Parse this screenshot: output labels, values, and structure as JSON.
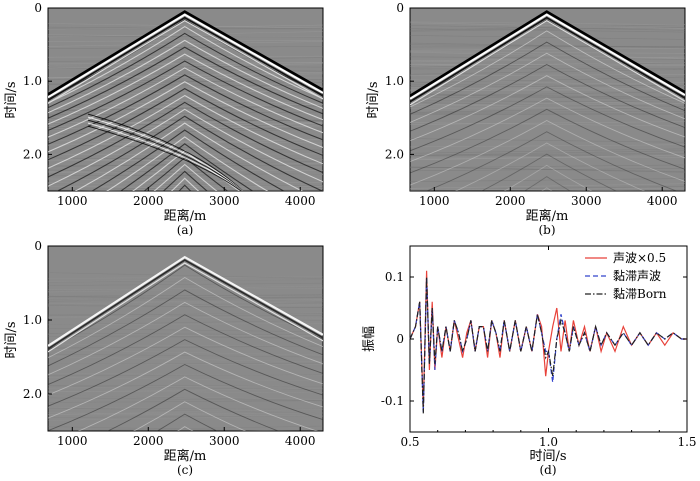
{
  "figure": {
    "panels": [
      {
        "id": "a",
        "caption": "(a)",
        "xlabel": "距离/m",
        "ylabel": "时间/s",
        "xticks": [
          "1000",
          "2000",
          "3000",
          "4000"
        ],
        "yticks": [
          "0",
          "1.0",
          "2.0"
        ]
      },
      {
        "id": "b",
        "caption": "(b)",
        "xlabel": "距离/m",
        "ylabel": "时间/s",
        "xticks": [
          "1000",
          "2000",
          "3000",
          "4000"
        ],
        "yticks": [
          "0",
          "1.0",
          "2.0"
        ]
      },
      {
        "id": "c",
        "caption": "(c)",
        "xlabel": "距离/m",
        "ylabel": "时间/s",
        "xticks": [
          "1000",
          "2000",
          "3000",
          "4000"
        ],
        "yticks": [
          "0",
          "1.0",
          "2.0"
        ]
      },
      {
        "id": "d",
        "caption": "(d)",
        "xlabel": "时间/s",
        "ylabel": "振幅",
        "xticks": [
          "0.5",
          "1.0",
          "1.5"
        ],
        "yticks": [
          "0.1",
          "0",
          "-0.1"
        ]
      }
    ],
    "colors": {
      "seismic_bg": "#8a8a8a",
      "acoustic": "#e8423a",
      "visco_acoustic": "#3344cc",
      "visco_born": "#222222"
    }
  },
  "chart_data": [
    {
      "type": "heatmap",
      "panel": "a",
      "title": "",
      "xlabel": "距离/m",
      "ylabel": "时间/s",
      "xlim": [
        680,
        4300
      ],
      "ylim": [
        0,
        2.5
      ],
      "y_inverted": true,
      "apex": {
        "x": 2480,
        "t": 0.05
      },
      "direct_wave_end_times": {
        "x_680": 1.18,
        "x_4300": 1.12
      }
    },
    {
      "type": "heatmap",
      "panel": "b",
      "title": "",
      "xlabel": "距离/m",
      "ylabel": "时间/s",
      "xlim": [
        680,
        4300
      ],
      "ylim": [
        0,
        2.5
      ],
      "y_inverted": true,
      "apex": {
        "x": 2480,
        "t": 0.05
      },
      "direct_wave_end_times": {
        "x_680": 1.2,
        "x_4300": 1.15
      }
    },
    {
      "type": "heatmap",
      "panel": "c",
      "title": "",
      "xlabel": "距离/m",
      "ylabel": "时间/s",
      "xlim": [
        680,
        4300
      ],
      "ylim": [
        0,
        2.5
      ],
      "y_inverted": true,
      "apex": {
        "x": 2480,
        "t": 0.15
      },
      "direct_wave_end_times": {
        "x_680": 1.35,
        "x_4300": 1.2
      }
    },
    {
      "type": "line",
      "panel": "d",
      "title": "",
      "xlabel": "时间/s",
      "ylabel": "振幅",
      "xlim": [
        0.5,
        1.5
      ],
      "ylim": [
        -0.15,
        0.15
      ],
      "legend_position": "top-right",
      "series": [
        {
          "name": "声波×0.5",
          "color": "#e8423a",
          "style": "solid",
          "x": [
            0.5,
            0.52,
            0.535,
            0.548,
            0.56,
            0.57,
            0.58,
            0.59,
            0.6,
            0.615,
            0.63,
            0.645,
            0.66,
            0.675,
            0.69,
            0.705,
            0.72,
            0.735,
            0.75,
            0.765,
            0.78,
            0.795,
            0.81,
            0.825,
            0.84,
            0.86,
            0.88,
            0.9,
            0.92,
            0.94,
            0.96,
            0.975,
            0.99,
            1.0,
            1.015,
            1.03,
            1.045,
            1.06,
            1.075,
            1.09,
            1.11,
            1.13,
            1.15,
            1.17,
            1.19,
            1.21,
            1.24,
            1.27,
            1.3,
            1.33,
            1.36,
            1.39,
            1.42,
            1.45,
            1.48,
            1.5
          ],
          "y": [
            0.0,
            0.02,
            0.06,
            -0.11,
            0.11,
            -0.05,
            0.06,
            -0.05,
            0.02,
            -0.03,
            0.02,
            -0.02,
            0.03,
            0.0,
            -0.03,
            0.01,
            0.03,
            -0.02,
            0.02,
            0.02,
            -0.03,
            0.03,
            0.01,
            -0.03,
            0.03,
            -0.02,
            0.03,
            -0.02,
            0.02,
            -0.02,
            0.04,
            0.02,
            -0.06,
            -0.02,
            0.02,
            0.05,
            -0.02,
            0.03,
            -0.02,
            0.03,
            -0.01,
            0.02,
            -0.02,
            0.02,
            -0.02,
            0.01,
            -0.02,
            0.02,
            -0.01,
            0.01,
            -0.01,
            0.01,
            -0.01,
            0.01,
            0.0,
            0.0
          ]
        },
        {
          "name": "黏滞声波",
          "color": "#3344cc",
          "style": "dashed",
          "x": [
            0.5,
            0.52,
            0.535,
            0.548,
            0.56,
            0.57,
            0.58,
            0.59,
            0.6,
            0.615,
            0.63,
            0.645,
            0.66,
            0.675,
            0.69,
            0.705,
            0.72,
            0.735,
            0.75,
            0.765,
            0.78,
            0.795,
            0.81,
            0.825,
            0.84,
            0.86,
            0.88,
            0.9,
            0.92,
            0.94,
            0.96,
            0.975,
            0.99,
            1.0,
            1.015,
            1.03,
            1.045,
            1.06,
            1.075,
            1.09,
            1.11,
            1.13,
            1.15,
            1.17,
            1.19,
            1.21,
            1.24,
            1.27,
            1.3,
            1.33,
            1.36,
            1.39,
            1.42,
            1.45,
            1.48,
            1.5
          ],
          "y": [
            0.0,
            0.02,
            0.06,
            -0.12,
            0.1,
            -0.04,
            0.05,
            -0.05,
            0.02,
            -0.02,
            0.02,
            -0.02,
            0.03,
            0.01,
            -0.02,
            0.0,
            0.03,
            -0.02,
            0.02,
            0.02,
            -0.02,
            0.03,
            0.01,
            -0.02,
            0.03,
            -0.02,
            0.03,
            -0.02,
            0.02,
            -0.02,
            0.04,
            0.01,
            -0.02,
            -0.02,
            -0.07,
            0.0,
            0.04,
            0.01,
            -0.02,
            0.02,
            -0.01,
            0.01,
            -0.02,
            0.02,
            -0.01,
            0.01,
            -0.01,
            0.01,
            -0.01,
            0.01,
            -0.01,
            0.01,
            0.0,
            0.01,
            0.0,
            0.0
          ]
        },
        {
          "name": "黏滞Born",
          "color": "#222222",
          "style": "dash-dot",
          "x": [
            0.5,
            0.52,
            0.535,
            0.548,
            0.56,
            0.57,
            0.58,
            0.59,
            0.6,
            0.615,
            0.63,
            0.645,
            0.66,
            0.675,
            0.69,
            0.705,
            0.72,
            0.735,
            0.75,
            0.765,
            0.78,
            0.795,
            0.81,
            0.825,
            0.84,
            0.86,
            0.88,
            0.9,
            0.92,
            0.94,
            0.96,
            0.975,
            0.99,
            1.0,
            1.015,
            1.03,
            1.045,
            1.06,
            1.075,
            1.09,
            1.11,
            1.13,
            1.15,
            1.17,
            1.19,
            1.21,
            1.24,
            1.27,
            1.3,
            1.33,
            1.36,
            1.39,
            1.42,
            1.45,
            1.48,
            1.5
          ],
          "y": [
            0.0,
            0.02,
            0.06,
            -0.12,
            0.1,
            -0.04,
            0.05,
            -0.04,
            0.02,
            -0.02,
            0.02,
            -0.02,
            0.03,
            0.01,
            -0.02,
            0.0,
            0.03,
            -0.02,
            0.02,
            0.02,
            -0.02,
            0.03,
            0.01,
            -0.02,
            0.03,
            -0.02,
            0.03,
            -0.02,
            0.02,
            -0.02,
            0.04,
            0.01,
            -0.03,
            -0.02,
            -0.06,
            0.0,
            0.03,
            0.01,
            -0.02,
            0.02,
            -0.01,
            0.01,
            -0.02,
            0.02,
            -0.01,
            0.01,
            -0.01,
            0.01,
            -0.01,
            0.01,
            -0.01,
            0.01,
            0.0,
            0.01,
            0.0,
            0.0
          ]
        }
      ]
    }
  ]
}
